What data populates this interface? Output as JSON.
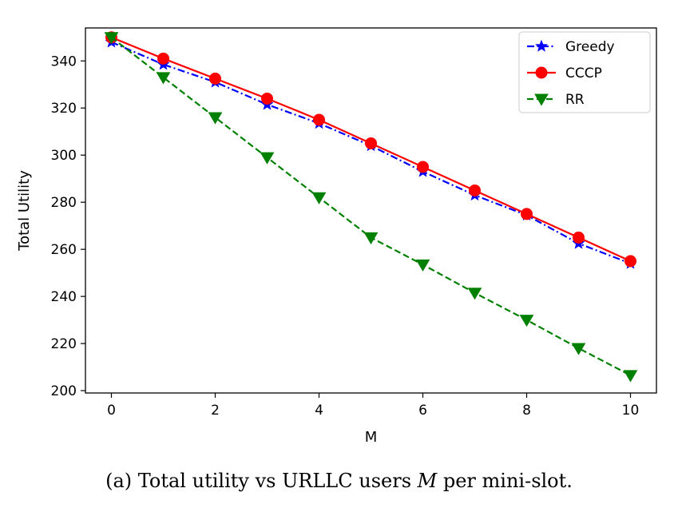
{
  "chart_data": {
    "type": "line",
    "x": [
      0,
      1,
      2,
      3,
      4,
      5,
      6,
      7,
      8,
      9,
      10
    ],
    "xticks": [
      0,
      2,
      4,
      6,
      8,
      10
    ],
    "yticks": [
      200,
      220,
      240,
      260,
      280,
      300,
      320,
      340
    ],
    "xlim": [
      -0.5,
      10.5
    ],
    "ylim": [
      199,
      354
    ],
    "xlabel": "M",
    "ylabel": "Total Utility",
    "legend_position": "top-right",
    "grid": false,
    "series": [
      {
        "name": "Greedy",
        "color": "#0000ff",
        "linestyle": "dashdot",
        "marker": "star",
        "values": [
          348,
          338.5,
          331,
          321.5,
          313.5,
          304,
          293,
          283,
          274.5,
          262.5,
          254
        ]
      },
      {
        "name": "CCCP",
        "color": "#ff0000",
        "linestyle": "solid",
        "marker": "circle",
        "values": [
          350,
          341,
          332.5,
          324,
          315,
          305,
          295,
          285,
          275,
          265,
          255
        ]
      },
      {
        "name": "RR",
        "color": "#008000",
        "linestyle": "dashed",
        "marker": "triangle-down",
        "values": [
          350,
          333,
          316,
          299,
          282,
          265,
          253.5,
          241.5,
          230,
          218,
          206.5
        ]
      }
    ]
  },
  "caption": {
    "prefix": "(a) Total utility vs URLLC users ",
    "math": "M",
    "suffix": " per mini-slot."
  }
}
